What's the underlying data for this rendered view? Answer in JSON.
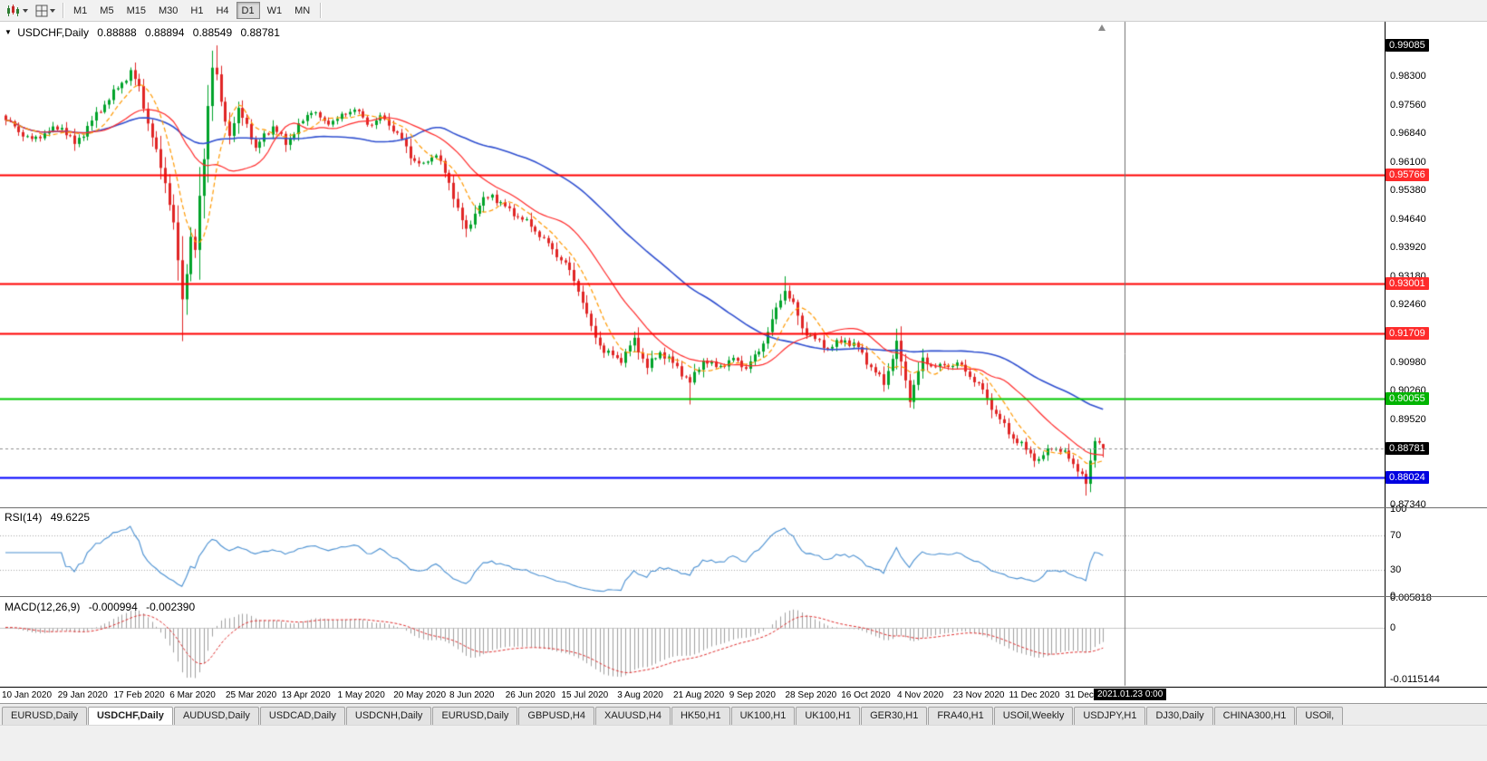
{
  "toolbar": {
    "timeframes": [
      "M1",
      "M5",
      "M15",
      "M30",
      "H1",
      "H4",
      "D1",
      "W1",
      "MN"
    ],
    "active_timeframe": "D1"
  },
  "icons": {
    "toolbar_left": [
      "chart-type-icon",
      "grid-layout-icon",
      "dropdown-caret-icon"
    ],
    "header_collapse": "triangle-down-icon",
    "shift_marker": "triangle-up-icon"
  },
  "chart": {
    "header": {
      "collapse_glyph": "▼",
      "symbol": "USDCHF,Daily",
      "open": "0.88888",
      "high": "0.88894",
      "low": "0.88549",
      "close": "0.88781"
    },
    "rsi_label": {
      "name": "RSI(14)",
      "value": "49.6225"
    },
    "macd_label": {
      "name": "MACD(12,26,9)",
      "value": "-0.000994",
      "signal": "-0.002390"
    }
  },
  "tabs": {
    "items": [
      "EURUSD,Daily",
      "USDCHF,Daily",
      "AUDUSD,Daily",
      "USDCAD,Daily",
      "USDCNH,Daily",
      "EURUSD,Daily",
      "GBPUSD,H4",
      "XAUUSD,H4",
      "HK50,H1",
      "UK100,H1",
      "UK100,H1",
      "GER30,H1",
      "FRA40,H1",
      "USOil,Weekly",
      "USDJPY,H1",
      "DJ30,Daily",
      "CHINA300,H1",
      "USOil,"
    ],
    "active_index": 1
  },
  "chart_data": {
    "type": "candlestick",
    "symbol": "USDCHF",
    "timeframe": "Daily",
    "current_ohlc": {
      "o": 0.88888,
      "h": 0.88894,
      "l": 0.88549,
      "c": 0.88781
    },
    "style": {
      "up_color": "#00a32a",
      "down_color": "#e02525",
      "background": "#ffffff",
      "crosshair_color": "#707070",
      "bid_line_color": "#909090"
    },
    "y_axis": {
      "price_top": 0.9969,
      "price_bottom": 0.8727,
      "ticks": [
        {
          "label": "0.99085",
          "price": 0.99085,
          "type": "tag-black"
        },
        {
          "label": "0.98300",
          "price": 0.983,
          "type": "tick"
        },
        {
          "label": "0.97560",
          "price": 0.9756,
          "type": "tick"
        },
        {
          "label": "0.96840",
          "price": 0.9684,
          "type": "tick"
        },
        {
          "label": "0.96100",
          "price": 0.961,
          "type": "tick"
        },
        {
          "label": "0.95766",
          "price": 0.95766,
          "type": "tag-red"
        },
        {
          "label": "0.95380",
          "price": 0.9538,
          "type": "tick"
        },
        {
          "label": "0.94640",
          "price": 0.9464,
          "type": "tick"
        },
        {
          "label": "0.93920",
          "price": 0.9392,
          "type": "tick"
        },
        {
          "label": "0.93180",
          "price": 0.9318,
          "type": "tick"
        },
        {
          "label": "0.93001",
          "price": 0.93001,
          "type": "tag-red"
        },
        {
          "label": "0.92460",
          "price": 0.9246,
          "type": "tick"
        },
        {
          "label": "0.91709",
          "price": 0.91709,
          "type": "tag-red"
        },
        {
          "label": "0.90980",
          "price": 0.9098,
          "type": "tick"
        },
        {
          "label": "0.90260",
          "price": 0.9026,
          "type": "tick"
        },
        {
          "label": "0.90055",
          "price": 0.90055,
          "type": "tag-green"
        },
        {
          "label": "0.89520",
          "price": 0.8952,
          "type": "tick"
        },
        {
          "label": "0.88781",
          "price": 0.88781,
          "type": "tag-black"
        },
        {
          "label": "0.88024",
          "price": 0.88024,
          "type": "tag-blue"
        },
        {
          "label": "0.87340",
          "price": 0.8734,
          "type": "tick"
        }
      ]
    },
    "levels": [
      {
        "price": 0.95766,
        "color": "#ff0000",
        "width": 2,
        "label": "0.95766"
      },
      {
        "price": 0.93001,
        "color": "#ff0000",
        "width": 2,
        "label": "0.93001"
      },
      {
        "price": 0.91709,
        "color": "#ff0000",
        "width": 2,
        "label": "0.91709"
      },
      {
        "price": 0.90055,
        "color": "#00c800",
        "width": 2,
        "label": "0.90055"
      },
      {
        "price": 0.88024,
        "color": "#0000ff",
        "width": 2,
        "label": "0.88024"
      }
    ],
    "x_axis": {
      "labels": [
        [
          0,
          "10 Jan 2020"
        ],
        [
          13,
          "29 Jan 2020"
        ],
        [
          26,
          "17 Feb 2020"
        ],
        [
          39,
          "6 Mar 2020"
        ],
        [
          52,
          "25 Mar 2020"
        ],
        [
          65,
          "13 Apr 2020"
        ],
        [
          78,
          "1 May 2020"
        ],
        [
          91,
          "20 May 2020"
        ],
        [
          104,
          "8 Jun 2020"
        ],
        [
          117,
          "26 Jun 2020"
        ],
        [
          130,
          "15 Jul 2020"
        ],
        [
          143,
          "3 Aug 2020"
        ],
        [
          156,
          "21 Aug 2020"
        ],
        [
          169,
          "9 Sep 2020"
        ],
        [
          182,
          "28 Sep 2020"
        ],
        [
          195,
          "16 Oct 2020"
        ],
        [
          208,
          "4 Nov 2020"
        ],
        [
          221,
          "23 Nov 2020"
        ],
        [
          234,
          "11 Dec 2020"
        ],
        [
          247,
          "31 Dec 20"
        ]
      ],
      "crosshair": {
        "index": 260,
        "label": "2021.01.23 0:00"
      }
    },
    "candles": {
      "count": 256,
      "close_anchors": [
        [
          0,
          0.9717
        ],
        [
          3,
          0.969
        ],
        [
          6,
          0.9665
        ],
        [
          9,
          0.9685
        ],
        [
          13,
          0.97
        ],
        [
          16,
          0.9655
        ],
        [
          19,
          0.97
        ],
        [
          22,
          0.9745
        ],
        [
          26,
          0.98
        ],
        [
          29,
          0.984
        ],
        [
          31,
          0.98
        ],
        [
          33,
          0.971
        ],
        [
          35,
          0.9635
        ],
        [
          37,
          0.956
        ],
        [
          39,
          0.945
        ],
        [
          41,
          0.926
        ],
        [
          42,
          0.933
        ],
        [
          43,
          0.942
        ],
        [
          44,
          0.938
        ],
        [
          45,
          0.952
        ],
        [
          46,
          0.962
        ],
        [
          47,
          0.976
        ],
        [
          48,
          0.985
        ],
        [
          49,
          0.983
        ],
        [
          50,
          0.976
        ],
        [
          52,
          0.968
        ],
        [
          54,
          0.974
        ],
        [
          56,
          0.971
        ],
        [
          58,
          0.964
        ],
        [
          60,
          0.968
        ],
        [
          62,
          0.97
        ],
        [
          65,
          0.966
        ],
        [
          68,
          0.97
        ],
        [
          71,
          0.9745
        ],
        [
          74,
          0.971
        ],
        [
          78,
          0.9725
        ],
        [
          81,
          0.975
        ],
        [
          84,
          0.9705
        ],
        [
          87,
          0.9725
        ],
        [
          91,
          0.9685
        ],
        [
          94,
          0.9625
        ],
        [
          97,
          0.96
        ],
        [
          100,
          0.9635
        ],
        [
          104,
          0.9525
        ],
        [
          107,
          0.943
        ],
        [
          110,
          0.9505
        ],
        [
          113,
          0.9525
        ],
        [
          117,
          0.9485
        ],
        [
          120,
          0.9465
        ],
        [
          124,
          0.9425
        ],
        [
          127,
          0.9385
        ],
        [
          130,
          0.935
        ],
        [
          133,
          0.9285
        ],
        [
          136,
          0.9185
        ],
        [
          139,
          0.9125
        ],
        [
          143,
          0.9105
        ],
        [
          146,
          0.9155
        ],
        [
          149,
          0.9085
        ],
        [
          152,
          0.9125
        ],
        [
          156,
          0.9085
        ],
        [
          159,
          0.9045
        ],
        [
          162,
          0.9105
        ],
        [
          165,
          0.9085
        ],
        [
          169,
          0.9105
        ],
        [
          172,
          0.9085
        ],
        [
          175,
          0.9125
        ],
        [
          178,
          0.9205
        ],
        [
          181,
          0.9285
        ],
        [
          183,
          0.9245
        ],
        [
          185,
          0.9185
        ],
        [
          188,
          0.9155
        ],
        [
          191,
          0.9135
        ],
        [
          195,
          0.9155
        ],
        [
          198,
          0.9135
        ],
        [
          201,
          0.9085
        ],
        [
          204,
          0.9045
        ],
        [
          207,
          0.9145
        ],
        [
          210,
          0.9005
        ],
        [
          213,
          0.9105
        ],
        [
          216,
          0.9085
        ],
        [
          221,
          0.9095
        ],
        [
          224,
          0.9065
        ],
        [
          227,
          0.9025
        ],
        [
          230,
          0.8965
        ],
        [
          234,
          0.8905
        ],
        [
          237,
          0.8875
        ],
        [
          240,
          0.8845
        ],
        [
          243,
          0.8885
        ],
        [
          247,
          0.8855
        ],
        [
          249,
          0.8825
        ],
        [
          251,
          0.8785
        ],
        [
          253,
          0.8905
        ],
        [
          255,
          0.88781
        ]
      ],
      "wick_overrides": {
        "29": {
          "h": 0.9852
        },
        "41": {
          "l": 0.9152
        },
        "48": {
          "h": 0.9895
        },
        "49": {
          "h": 0.99085
        },
        "107": {
          "l": 0.9418
        },
        "159": {
          "l": 0.899
        },
        "181": {
          "h": 0.9318
        },
        "210": {
          "l": 0.8982
        },
        "251": {
          "l": 0.8757
        }
      }
    },
    "moving_averages": [
      {
        "period": 55,
        "color": "#2f4fd0",
        "dash": false,
        "width": 1.6
      },
      {
        "period": 21,
        "color": "#ff2a2a",
        "dash": false,
        "width": 1.2
      },
      {
        "period": 8,
        "color": "#ff9900",
        "dash": true,
        "width": 1.2
      }
    ],
    "indicators": {
      "rsi": {
        "period": 14,
        "value": 49.6225,
        "color": "#4a90d2",
        "level_line_color": "#a8a8a8",
        "scale_labels": [
          {
            "v": 100,
            "label": "100"
          },
          {
            "v": 70,
            "label": "70"
          },
          {
            "v": 30,
            "label": "30"
          },
          {
            "v": 0,
            "label": "0"
          }
        ],
        "levels": [
          70,
          30
        ]
      },
      "macd": {
        "fast": 12,
        "slow": 26,
        "signal": 9,
        "value": -0.000994,
        "signal_value": -0.00239,
        "histogram_color": "#a0a0a0",
        "signal_color": "#e03030",
        "scale_max": 0.005818,
        "scale_min": -0.0115144,
        "scale_labels": [
          {
            "v": 0.005818,
            "label": "0.005818"
          },
          {
            "v": 0,
            "label": "0"
          },
          {
            "v": -0.0115144,
            "label": "-0.0115144"
          }
        ]
      }
    }
  }
}
